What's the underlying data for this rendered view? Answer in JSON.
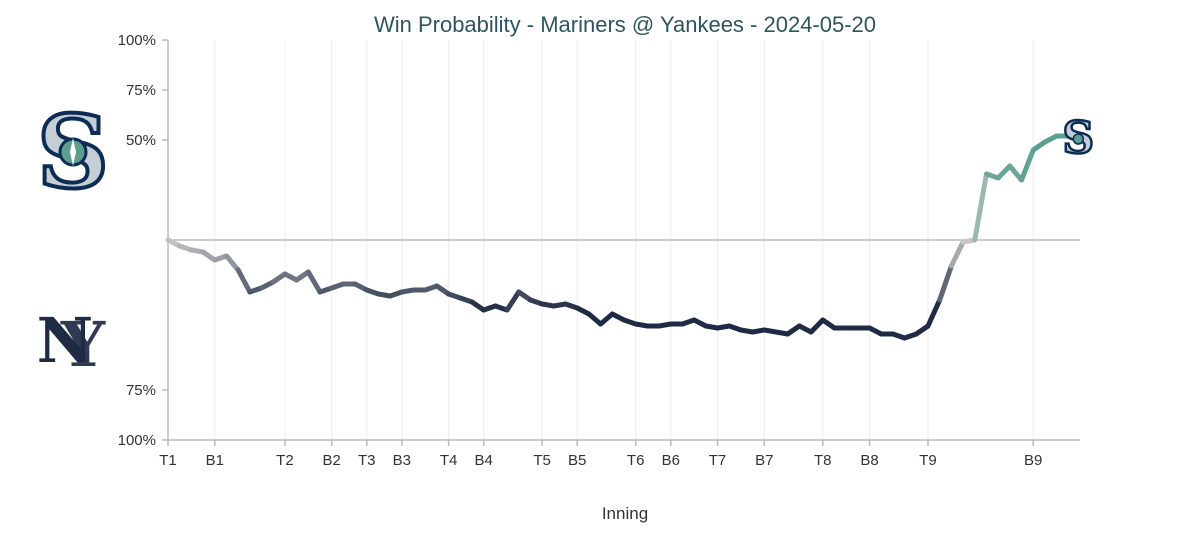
{
  "chart_data": {
    "type": "line",
    "title": "Win Probability - Mariners @ Yankees - 2024-05-20",
    "xlabel": "Inning",
    "ylabel": "",
    "y_tick_labels": [
      "100%",
      "75%",
      "50%",
      "75%",
      "100%"
    ],
    "y_ticks_note_values": [
      100,
      75,
      50,
      -75,
      -100
    ],
    "ylim": [
      -100,
      100
    ],
    "x_tick_labels": [
      {
        "label": "T1",
        "x": 0
      },
      {
        "label": "B1",
        "x": 4
      },
      {
        "label": "T2",
        "x": 10
      },
      {
        "label": "B2",
        "x": 14
      },
      {
        "label": "T3",
        "x": 17
      },
      {
        "label": "B3",
        "x": 20
      },
      {
        "label": "T4",
        "x": 24
      },
      {
        "label": "B4",
        "x": 27
      },
      {
        "label": "T5",
        "x": 32
      },
      {
        "label": "B5",
        "x": 35
      },
      {
        "label": "T6",
        "x": 40
      },
      {
        "label": "B6",
        "x": 43
      },
      {
        "label": "T7",
        "x": 47
      },
      {
        "label": "B7",
        "x": 51
      },
      {
        "label": "T8",
        "x": 56
      },
      {
        "label": "B8",
        "x": 60
      },
      {
        "label": "T9",
        "x": 65
      },
      {
        "label": "B9",
        "x": 74
      }
    ],
    "xlim": [
      0,
      78
    ],
    "grid": true,
    "series": [
      {
        "x": [
          0,
          1,
          2,
          3,
          4,
          5,
          6,
          7,
          8,
          9,
          10,
          11,
          12,
          13,
          14,
          15,
          16,
          17,
          18,
          19,
          20,
          21,
          22,
          23,
          24,
          25,
          26,
          27,
          28,
          29,
          30,
          31,
          32,
          33,
          34,
          35,
          36,
          37,
          38,
          39,
          40,
          41,
          42,
          43,
          44,
          45,
          46,
          47,
          48,
          49,
          50,
          51,
          52,
          53,
          54,
          55,
          56,
          57,
          58,
          59,
          60,
          61,
          62,
          63,
          64,
          65,
          66,
          67,
          68,
          69,
          70,
          71,
          72,
          73,
          74,
          75,
          76,
          77
        ],
        "y": [
          0,
          -3,
          -5,
          -6,
          -10,
          -8,
          -15,
          -26,
          -24,
          -21,
          -17,
          -20,
          -16,
          -26,
          -24,
          -22,
          -22,
          -25,
          -27,
          -28,
          -26,
          -25,
          -25,
          -23,
          -27,
          -29,
          -31,
          -35,
          -33,
          -35,
          -26,
          -30,
          -32,
          -33,
          -32,
          -34,
          -37,
          -42,
          -37,
          -40,
          -42,
          -43,
          -43,
          -42,
          -42,
          -40,
          -43,
          -44,
          -43,
          -45,
          -46,
          -45,
          -46,
          -47,
          -43,
          -46,
          -40,
          -44,
          -44,
          -44,
          -44,
          -47,
          -47,
          -49,
          -47,
          -43,
          -30,
          -13,
          -1,
          0,
          33,
          31,
          37,
          30,
          45,
          49,
          52,
          52
        ]
      }
    ],
    "colors": {
      "yankees_navy": "#1f2a44",
      "mariners_teal": "#5c9e8f",
      "mariners_navy": "#0c2c56",
      "start_gray": "#c8c8c8",
      "title": "#2e5560",
      "center_line": "#bbbbbb"
    },
    "logos": {
      "top": "mariners-logo",
      "bottom": "yankees-logo",
      "line_end": "mariners-s-logo"
    }
  }
}
